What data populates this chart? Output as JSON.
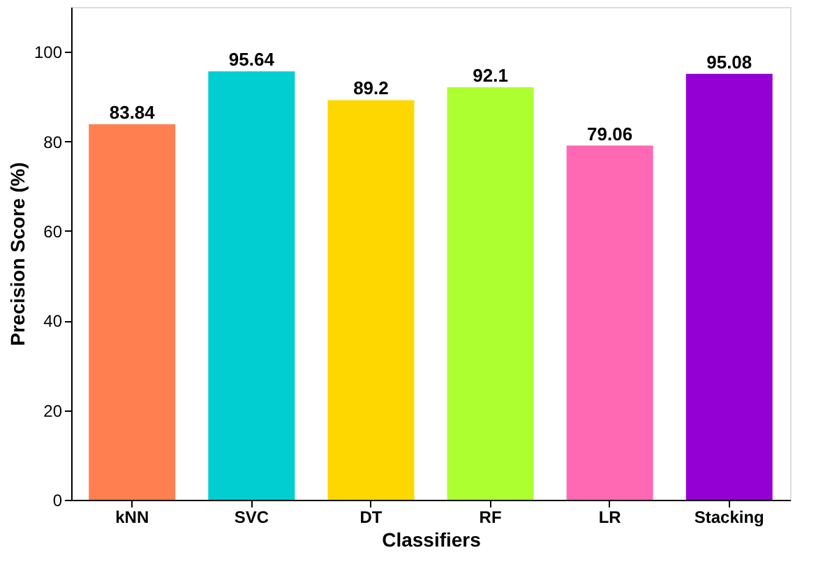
{
  "chart_data": {
    "type": "bar",
    "xlabel": "Classifiers",
    "ylabel": "Precision Score (%)",
    "categories": [
      "kNN",
      "SVC",
      "DT",
      "RF",
      "LR",
      "Stacking"
    ],
    "values": [
      83.84,
      95.64,
      89.2,
      92.1,
      79.06,
      95.08
    ],
    "colors": [
      "#ff7f50",
      "#00ced1",
      "#ffd700",
      "#adff2f",
      "#ff69b4",
      "#9400d3"
    ],
    "ylim": [
      0,
      110
    ],
    "yticks": [
      0,
      20,
      40,
      60,
      80,
      100
    ],
    "grid": false,
    "data_labels": true
  }
}
